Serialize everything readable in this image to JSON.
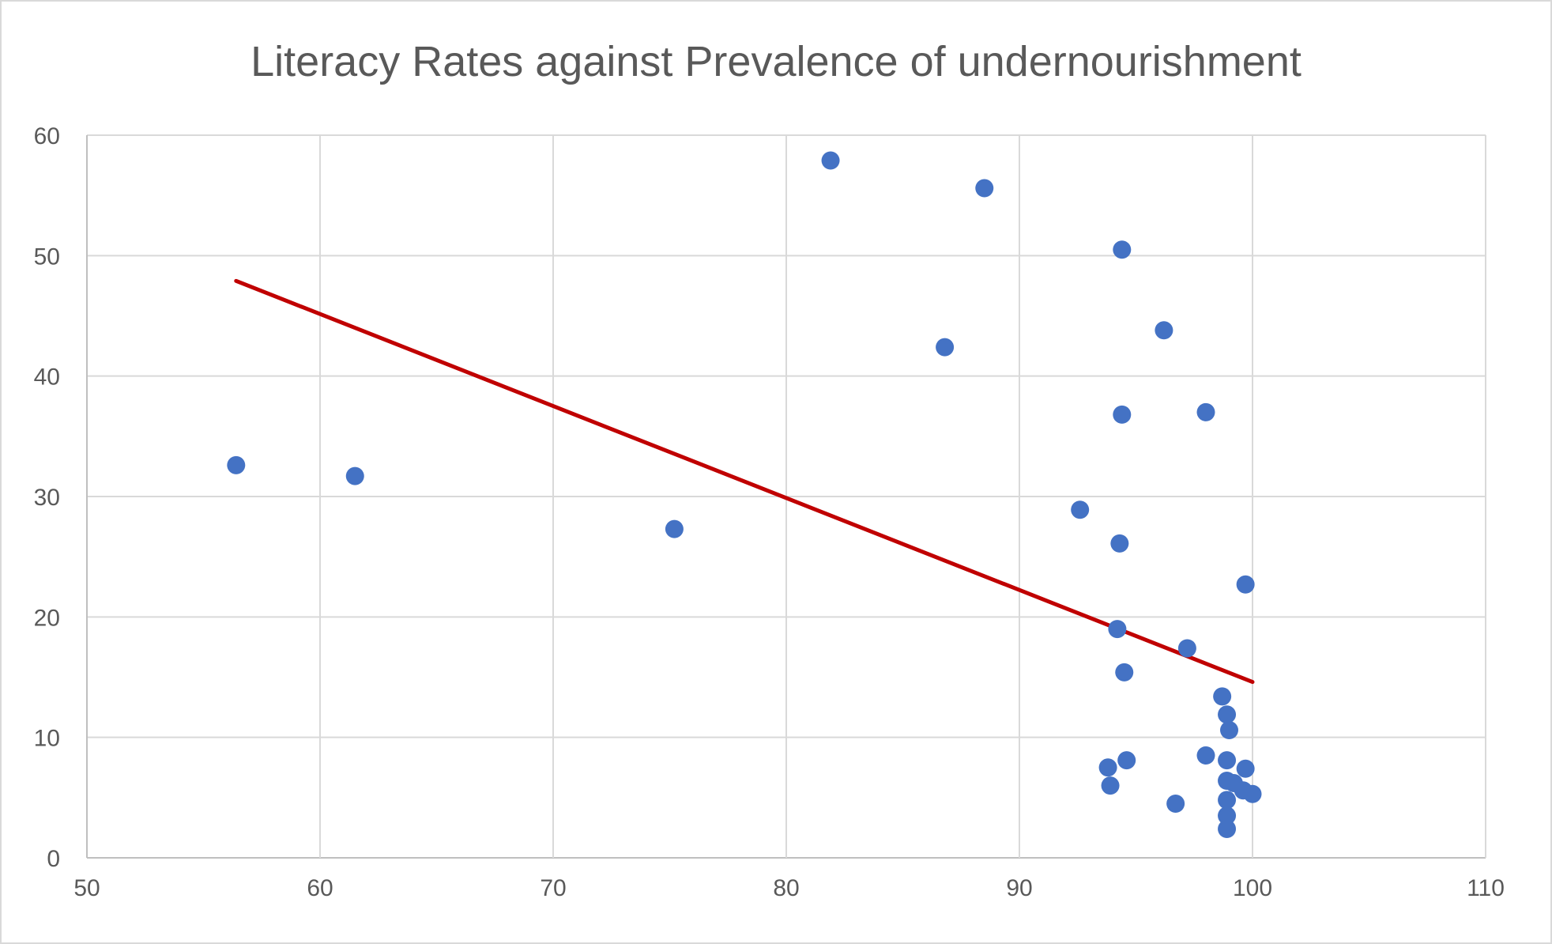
{
  "chart_data": {
    "type": "scatter",
    "title": "Literacy Rates against Prevalence of undernourishment",
    "xlabel": "",
    "ylabel": "",
    "xlim": [
      50,
      110
    ],
    "ylim": [
      0,
      60
    ],
    "x_ticks": [
      50,
      60,
      70,
      80,
      90,
      100,
      110
    ],
    "y_ticks": [
      0,
      10,
      20,
      30,
      40,
      50,
      60
    ],
    "grid": true,
    "legend": "none",
    "colors": {
      "points": "#4472c4",
      "trendline": "#c00000",
      "grid": "#d9d9d9",
      "text": "#595959"
    },
    "series": [
      {
        "points": [
          [
            56.4,
            32.6
          ],
          [
            61.5,
            31.7
          ],
          [
            75.2,
            27.3
          ],
          [
            81.9,
            57.9
          ],
          [
            86.8,
            42.4
          ],
          [
            88.5,
            55.6
          ],
          [
            92.6,
            28.9
          ],
          [
            93.8,
            7.5
          ],
          [
            93.9,
            6.0
          ],
          [
            94.2,
            19.0
          ],
          [
            94.3,
            26.1
          ],
          [
            94.4,
            36.8
          ],
          [
            94.4,
            50.5
          ],
          [
            94.5,
            15.4
          ],
          [
            94.6,
            8.1
          ],
          [
            96.2,
            43.8
          ],
          [
            96.7,
            4.5
          ],
          [
            97.2,
            17.4
          ],
          [
            98.0,
            37.0
          ],
          [
            98.0,
            8.5
          ],
          [
            98.7,
            13.4
          ],
          [
            98.9,
            11.9
          ],
          [
            98.9,
            8.1
          ],
          [
            98.9,
            6.4
          ],
          [
            98.9,
            4.8
          ],
          [
            98.9,
            3.5
          ],
          [
            98.9,
            2.4
          ],
          [
            99.0,
            10.6
          ],
          [
            99.2,
            6.2
          ],
          [
            99.6,
            5.6
          ],
          [
            99.7,
            7.4
          ],
          [
            99.7,
            22.7
          ],
          [
            100.0,
            5.3
          ]
        ]
      }
    ],
    "trendline": {
      "type": "linear",
      "start": [
        56.4,
        47.9
      ],
      "end": [
        100.0,
        14.6
      ]
    }
  }
}
